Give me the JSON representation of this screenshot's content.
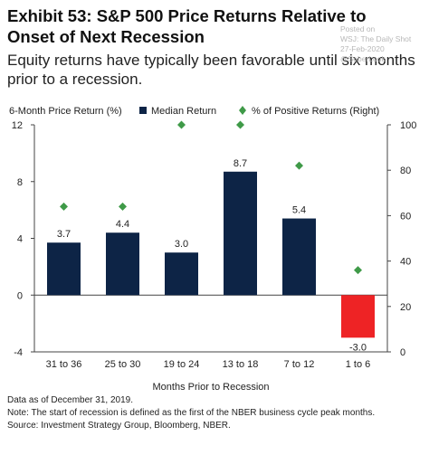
{
  "header": {
    "title": "Exhibit 53: S&P 500 Price Returns Relative to Onset of Next Recession",
    "subtitle": "Equity returns have typically been favorable until six months prior to a recession."
  },
  "watermark": {
    "lines": [
      "Posted on",
      "WSJ: The Daily Shot",
      "27-Feb-2020",
      "@SoberLook"
    ]
  },
  "notes": {
    "data_as_of": "Data as of December 31, 2019.",
    "note": "Note: The start of recession is defined as the first of the NBER business cycle peak months.",
    "source": "Source: Investment Strategy Group, Bloomberg, NBER."
  },
  "colors": {
    "bar_positive": "#0d2446",
    "bar_negative": "#ee2325",
    "diamond": "#3f9a48",
    "axis": "#444444"
  },
  "chart_data": {
    "type": "bar",
    "xlabel": "Months Prior to Recession",
    "ylabel_left": "6-Month Price Return (%)",
    "categories": [
      "31 to 36",
      "25 to 30",
      "19 to 24",
      "13 to 18",
      "7 to 12",
      "1 to 6"
    ],
    "ylim_left": [
      -4,
      12
    ],
    "yticks_left": [
      "-4",
      "0",
      "4",
      "8",
      "12"
    ],
    "ylim_right": [
      0,
      100
    ],
    "yticks_right": [
      "0",
      "20",
      "40",
      "60",
      "80",
      "100"
    ],
    "legend_position": "top",
    "series": [
      {
        "name": "Median Return",
        "axis": "left",
        "kind": "bar",
        "values": [
          3.7,
          4.4,
          3.0,
          8.7,
          5.4,
          -3.0
        ],
        "labels": [
          "3.7",
          "4.4",
          "3.0",
          "8.7",
          "5.4",
          "-3.0"
        ]
      },
      {
        "name": "% of Positive Returns (Right)",
        "axis": "right",
        "kind": "scatter",
        "marker": "diamond",
        "values": [
          64,
          64,
          100,
          100,
          82,
          36
        ]
      }
    ]
  }
}
